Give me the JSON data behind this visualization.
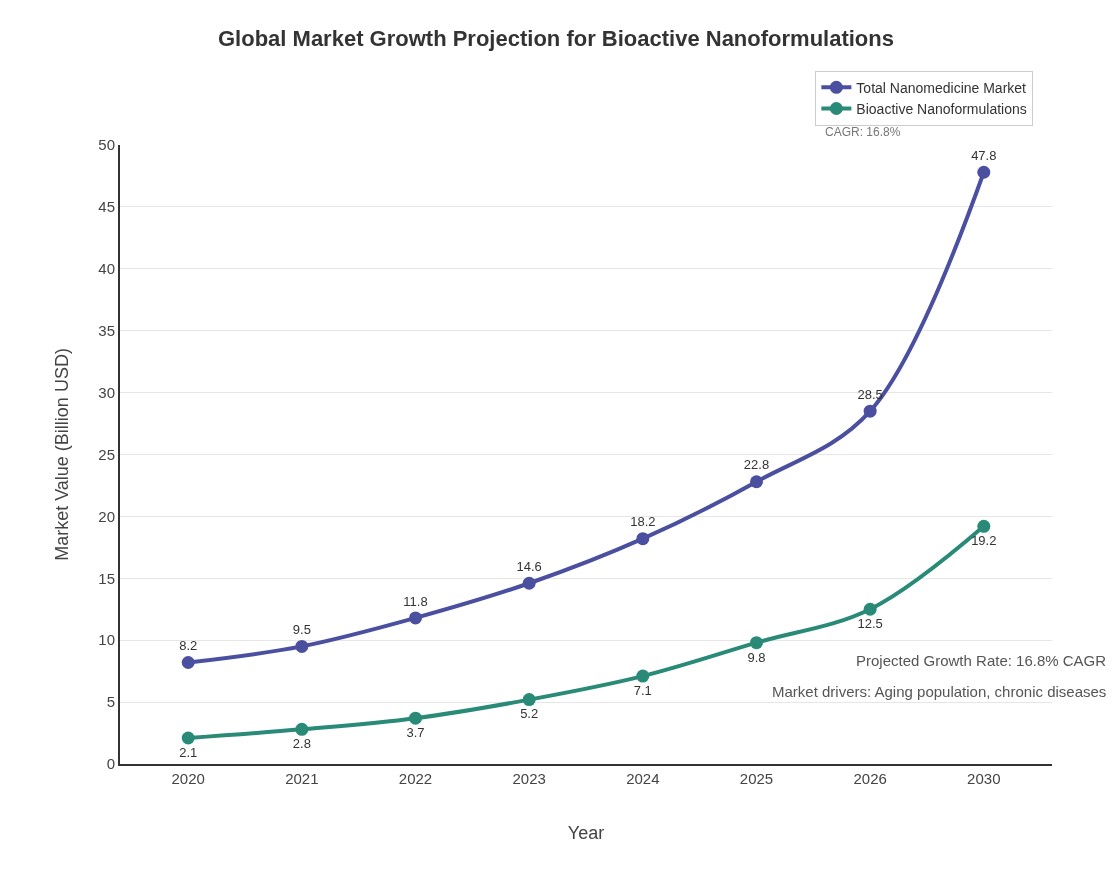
{
  "chart_data": {
    "type": "line",
    "title": "Global Market Growth Projection for Bioactive Nanoformulations",
    "xlabel": "Year",
    "ylabel": "Market Value (Billion USD)",
    "categories": [
      "2020",
      "2021",
      "2022",
      "2023",
      "2024",
      "2025",
      "2026",
      "2030"
    ],
    "series": [
      {
        "name": "Total Nanomedicine Market",
        "color": "#4b4fa0",
        "values": [
          8.2,
          9.5,
          11.8,
          14.6,
          18.2,
          22.8,
          28.5,
          47.8
        ]
      },
      {
        "name": "Bioactive Nanoformulations",
        "color": "#2a8a78",
        "values": [
          2.1,
          2.8,
          3.7,
          5.2,
          7.1,
          9.8,
          12.5,
          19.2
        ]
      }
    ],
    "ylim": [
      0,
      50
    ],
    "yticks": [
      0,
      5,
      10,
      15,
      20,
      25,
      30,
      35,
      40,
      45,
      50
    ],
    "grid": "y",
    "legend": "top right",
    "marker": "circle",
    "line_style": "solid",
    "data_labels": true,
    "annotations": [
      "CAGR: 16.8%",
      "Projected Growth Rate: 16.8% CAGR",
      "Market drivers: Aging population, chronic diseases"
    ]
  }
}
